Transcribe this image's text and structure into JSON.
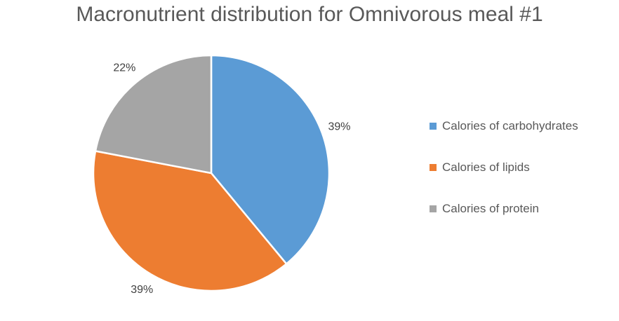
{
  "chart_data": {
    "type": "pie",
    "title": "Macronutrient distribution for Omnivorous meal #1",
    "legend_position": "right",
    "slices": [
      {
        "label": "Calories of carbohydrates",
        "value": 39,
        "display": "39%",
        "color": "#5B9BD5"
      },
      {
        "label": "Calories of lipids",
        "value": 39,
        "display": "39%",
        "color": "#ED7D31"
      },
      {
        "label": "Calories of protein",
        "value": 22,
        "display": "22%",
        "color": "#A5A5A5"
      }
    ]
  }
}
